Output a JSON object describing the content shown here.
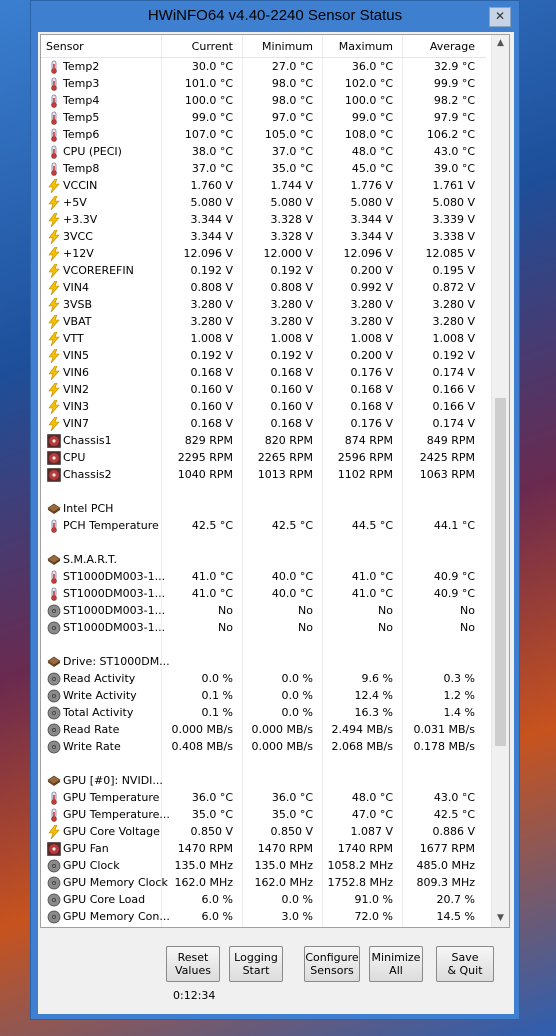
{
  "window": {
    "title": "HWiNFO64 v4.40-2240 Sensor Status",
    "close_symbol": "✕"
  },
  "columns": [
    "Sensor",
    "Current",
    "Minimum",
    "Maximum",
    "Average"
  ],
  "rows": [
    {
      "icon": "temp",
      "name": "Temp2",
      "cur": "30.0 °C",
      "min": "27.0 °C",
      "max": "36.0 °C",
      "avg": "32.9 °C"
    },
    {
      "icon": "temp",
      "name": "Temp3",
      "cur": "101.0 °C",
      "min": "98.0 °C",
      "max": "102.0 °C",
      "avg": "99.9 °C"
    },
    {
      "icon": "temp",
      "name": "Temp4",
      "cur": "100.0 °C",
      "min": "98.0 °C",
      "max": "100.0 °C",
      "avg": "98.2 °C"
    },
    {
      "icon": "temp",
      "name": "Temp5",
      "cur": "99.0 °C",
      "min": "97.0 °C",
      "max": "99.0 °C",
      "avg": "97.9 °C"
    },
    {
      "icon": "temp",
      "name": "Temp6",
      "cur": "107.0 °C",
      "min": "105.0 °C",
      "max": "108.0 °C",
      "avg": "106.2 °C"
    },
    {
      "icon": "temp",
      "name": "CPU (PECI)",
      "cur": "38.0 °C",
      "min": "37.0 °C",
      "max": "48.0 °C",
      "avg": "43.0 °C"
    },
    {
      "icon": "temp",
      "name": "Temp8",
      "cur": "37.0 °C",
      "min": "35.0 °C",
      "max": "45.0 °C",
      "avg": "39.0 °C"
    },
    {
      "icon": "volt",
      "name": "VCCIN",
      "cur": "1.760 V",
      "min": "1.744 V",
      "max": "1.776 V",
      "avg": "1.761 V"
    },
    {
      "icon": "volt",
      "name": "+5V",
      "cur": "5.080 V",
      "min": "5.080 V",
      "max": "5.080 V",
      "avg": "5.080 V"
    },
    {
      "icon": "volt",
      "name": "+3.3V",
      "cur": "3.344 V",
      "min": "3.328 V",
      "max": "3.344 V",
      "avg": "3.339 V"
    },
    {
      "icon": "volt",
      "name": "3VCC",
      "cur": "3.344 V",
      "min": "3.328 V",
      "max": "3.344 V",
      "avg": "3.338 V"
    },
    {
      "icon": "volt",
      "name": "+12V",
      "cur": "12.096 V",
      "min": "12.000 V",
      "max": "12.096 V",
      "avg": "12.085 V"
    },
    {
      "icon": "volt",
      "name": "VCOREREFIN",
      "cur": "0.192 V",
      "min": "0.192 V",
      "max": "0.200 V",
      "avg": "0.195 V"
    },
    {
      "icon": "volt",
      "name": "VIN4",
      "cur": "0.808 V",
      "min": "0.808 V",
      "max": "0.992 V",
      "avg": "0.872 V"
    },
    {
      "icon": "volt",
      "name": "3VSB",
      "cur": "3.280 V",
      "min": "3.280 V",
      "max": "3.280 V",
      "avg": "3.280 V"
    },
    {
      "icon": "volt",
      "name": "VBAT",
      "cur": "3.280 V",
      "min": "3.280 V",
      "max": "3.280 V",
      "avg": "3.280 V"
    },
    {
      "icon": "volt",
      "name": "VTT",
      "cur": "1.008 V",
      "min": "1.008 V",
      "max": "1.008 V",
      "avg": "1.008 V"
    },
    {
      "icon": "volt",
      "name": "VIN5",
      "cur": "0.192 V",
      "min": "0.192 V",
      "max": "0.200 V",
      "avg": "0.192 V"
    },
    {
      "icon": "volt",
      "name": "VIN6",
      "cur": "0.168 V",
      "min": "0.168 V",
      "max": "0.176 V",
      "avg": "0.174 V"
    },
    {
      "icon": "volt",
      "name": "VIN2",
      "cur": "0.160 V",
      "min": "0.160 V",
      "max": "0.168 V",
      "avg": "0.166 V"
    },
    {
      "icon": "volt",
      "name": "VIN3",
      "cur": "0.160 V",
      "min": "0.160 V",
      "max": "0.168 V",
      "avg": "0.166 V"
    },
    {
      "icon": "volt",
      "name": "VIN7",
      "cur": "0.168 V",
      "min": "0.168 V",
      "max": "0.176 V",
      "avg": "0.174 V"
    },
    {
      "icon": "fan",
      "name": "Chassis1",
      "cur": "829 RPM",
      "min": "820 RPM",
      "max": "874 RPM",
      "avg": "849 RPM"
    },
    {
      "icon": "fan",
      "name": "CPU",
      "cur": "2295 RPM",
      "min": "2265 RPM",
      "max": "2596 RPM",
      "avg": "2425 RPM"
    },
    {
      "icon": "fan",
      "name": "Chassis2",
      "cur": "1040 RPM",
      "min": "1013 RPM",
      "max": "1102 RPM",
      "avg": "1063 RPM"
    },
    {
      "icon": "",
      "name": "",
      "cur": "",
      "min": "",
      "max": "",
      "avg": ""
    },
    {
      "icon": "chip",
      "name": "Intel PCH",
      "cur": "",
      "min": "",
      "max": "",
      "avg": ""
    },
    {
      "icon": "temp",
      "name": "PCH Temperature",
      "cur": "42.5 °C",
      "min": "42.5 °C",
      "max": "44.5 °C",
      "avg": "44.1 °C"
    },
    {
      "icon": "",
      "name": "",
      "cur": "",
      "min": "",
      "max": "",
      "avg": ""
    },
    {
      "icon": "chip",
      "name": "S.M.A.R.T.",
      "cur": "",
      "min": "",
      "max": "",
      "avg": ""
    },
    {
      "icon": "temp",
      "name": "ST1000DM003-1...",
      "cur": "41.0 °C",
      "min": "40.0 °C",
      "max": "41.0 °C",
      "avg": "40.9 °C"
    },
    {
      "icon": "temp",
      "name": "ST1000DM003-1...",
      "cur": "41.0 °C",
      "min": "40.0 °C",
      "max": "41.0 °C",
      "avg": "40.9 °C"
    },
    {
      "icon": "disk",
      "name": "ST1000DM003-1...",
      "cur": "No",
      "min": "No",
      "max": "No",
      "avg": "No"
    },
    {
      "icon": "disk",
      "name": "ST1000DM003-1...",
      "cur": "No",
      "min": "No",
      "max": "No",
      "avg": "No"
    },
    {
      "icon": "",
      "name": "",
      "cur": "",
      "min": "",
      "max": "",
      "avg": ""
    },
    {
      "icon": "chip",
      "name": "Drive: ST1000DM...",
      "cur": "",
      "min": "",
      "max": "",
      "avg": ""
    },
    {
      "icon": "disk",
      "name": "Read Activity",
      "cur": "0.0 %",
      "min": "0.0 %",
      "max": "9.6 %",
      "avg": "0.3 %"
    },
    {
      "icon": "disk",
      "name": "Write Activity",
      "cur": "0.1 %",
      "min": "0.0 %",
      "max": "12.4 %",
      "avg": "1.2 %"
    },
    {
      "icon": "disk",
      "name": "Total Activity",
      "cur": "0.1 %",
      "min": "0.0 %",
      "max": "16.3 %",
      "avg": "1.4 %"
    },
    {
      "icon": "disk",
      "name": "Read Rate",
      "cur": "0.000 MB/s",
      "min": "0.000 MB/s",
      "max": "2.494 MB/s",
      "avg": "0.031 MB/s"
    },
    {
      "icon": "disk",
      "name": "Write Rate",
      "cur": "0.408 MB/s",
      "min": "0.000 MB/s",
      "max": "2.068 MB/s",
      "avg": "0.178 MB/s"
    },
    {
      "icon": "",
      "name": "",
      "cur": "",
      "min": "",
      "max": "",
      "avg": ""
    },
    {
      "icon": "chip",
      "name": "GPU [#0]: NVIDI...",
      "cur": "",
      "min": "",
      "max": "",
      "avg": ""
    },
    {
      "icon": "temp",
      "name": "GPU Temperature",
      "cur": "36.0 °C",
      "min": "36.0 °C",
      "max": "48.0 °C",
      "avg": "43.0 °C"
    },
    {
      "icon": "temp",
      "name": "GPU Temperature...",
      "cur": "35.0 °C",
      "min": "35.0 °C",
      "max": "47.0 °C",
      "avg": "42.5 °C"
    },
    {
      "icon": "volt",
      "name": "GPU Core Voltage",
      "cur": "0.850 V",
      "min": "0.850 V",
      "max": "1.087 V",
      "avg": "0.886 V"
    },
    {
      "icon": "fan",
      "name": "GPU Fan",
      "cur": "1470 RPM",
      "min": "1470 RPM",
      "max": "1740 RPM",
      "avg": "1677 RPM"
    },
    {
      "icon": "disk",
      "name": "GPU Clock",
      "cur": "135.0 MHz",
      "min": "135.0 MHz",
      "max": "1058.2 MHz",
      "avg": "485.0 MHz"
    },
    {
      "icon": "disk",
      "name": "GPU Memory Clock",
      "cur": "162.0 MHz",
      "min": "162.0 MHz",
      "max": "1752.8 MHz",
      "avg": "809.3 MHz"
    },
    {
      "icon": "disk",
      "name": "GPU Core Load",
      "cur": "6.0 %",
      "min": "0.0 %",
      "max": "91.0 %",
      "avg": "20.7 %"
    },
    {
      "icon": "disk",
      "name": "GPU Memory Con...",
      "cur": "6.0 %",
      "min": "3.0 %",
      "max": "72.0 %",
      "avg": "14.5 %"
    }
  ],
  "scrollbar": {
    "up": "▲",
    "down": "▼"
  },
  "buttons": [
    {
      "name": "reset-values-button",
      "line1": "Reset",
      "line2": "Values"
    },
    {
      "name": "logging-start-button",
      "line1": "Logging",
      "line2": "Start"
    },
    {
      "name": "configure-sensors-button",
      "line1": "Configure",
      "line2": "Sensors"
    },
    {
      "name": "minimize-all-button",
      "line1": "Minimize",
      "line2": "All"
    },
    {
      "name": "save-quit-button",
      "line1": "Save",
      "line2": "& Quit"
    }
  ],
  "timer": "0:12:34"
}
